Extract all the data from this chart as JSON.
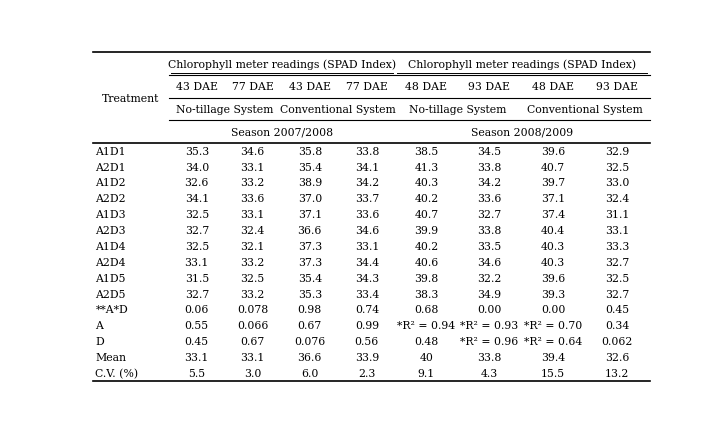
{
  "col_headers_top": [
    "Chlorophyll meter readings (SPAD Index)",
    "Chlorophyll meter readings (SPAD Index)"
  ],
  "col_headers_dae": [
    "43 DAE",
    "77 DAE",
    "43 DAE",
    "77 DAE",
    "48 DAE",
    "93 DAE",
    "48 DAE",
    "93 DAE"
  ],
  "col_headers_season": [
    "Season 2007/2008",
    "Season 2008/2009"
  ],
  "row_labels": [
    "A1D1",
    "A2D1",
    "A1D2",
    "A2D2",
    "A1D3",
    "A2D3",
    "A1D4",
    "A2D4",
    "A1D5",
    "A2D5",
    "**A*D",
    "A",
    "D",
    "Mean",
    "C.V. (%)"
  ],
  "data": [
    [
      "35.3",
      "34.6",
      "35.8",
      "33.8",
      "38.5",
      "34.5",
      "39.6",
      "32.9"
    ],
    [
      "34.0",
      "33.1",
      "35.4",
      "34.1",
      "41.3",
      "33.8",
      "40.7",
      "32.5"
    ],
    [
      "32.6",
      "33.2",
      "38.9",
      "34.2",
      "40.3",
      "34.2",
      "39.7",
      "33.0"
    ],
    [
      "34.1",
      "33.6",
      "37.0",
      "33.7",
      "40.2",
      "33.6",
      "37.1",
      "32.4"
    ],
    [
      "32.5",
      "33.1",
      "37.1",
      "33.6",
      "40.7",
      "32.7",
      "37.4",
      "31.1"
    ],
    [
      "32.7",
      "32.4",
      "36.6",
      "34.6",
      "39.9",
      "33.8",
      "40.4",
      "33.1"
    ],
    [
      "32.5",
      "32.1",
      "37.3",
      "33.1",
      "40.2",
      "33.5",
      "40.3",
      "33.3"
    ],
    [
      "33.1",
      "33.2",
      "37.3",
      "34.4",
      "40.6",
      "34.6",
      "40.3",
      "32.7"
    ],
    [
      "31.5",
      "32.5",
      "35.4",
      "34.3",
      "39.8",
      "32.2",
      "39.6",
      "32.5"
    ],
    [
      "32.7",
      "33.2",
      "35.3",
      "33.4",
      "38.3",
      "34.9",
      "39.3",
      "32.7"
    ],
    [
      "0.06",
      "0.078",
      "0.98",
      "0.74",
      "0.68",
      "0.00",
      "0.00",
      "0.45"
    ],
    [
      "0.55",
      "0.066",
      "0.67",
      "0.99",
      "*R² = 0.94",
      "*R² = 0.93",
      "*R² = 0.70",
      "0.34"
    ],
    [
      "0.45",
      "0.67",
      "0.076",
      "0.56",
      "0.48",
      "*R² = 0.96",
      "*R² = 0.64",
      "0.062"
    ],
    [
      "33.1",
      "33.1",
      "36.6",
      "33.9",
      "40",
      "33.8",
      "39.4",
      "32.6"
    ],
    [
      "5.5",
      "3.0",
      "6.0",
      "2.3",
      "9.1",
      "4.3",
      "15.5",
      "13.2"
    ]
  ],
  "bg_color": "#ffffff",
  "font_size": 7.8,
  "header_font_size": 7.8
}
